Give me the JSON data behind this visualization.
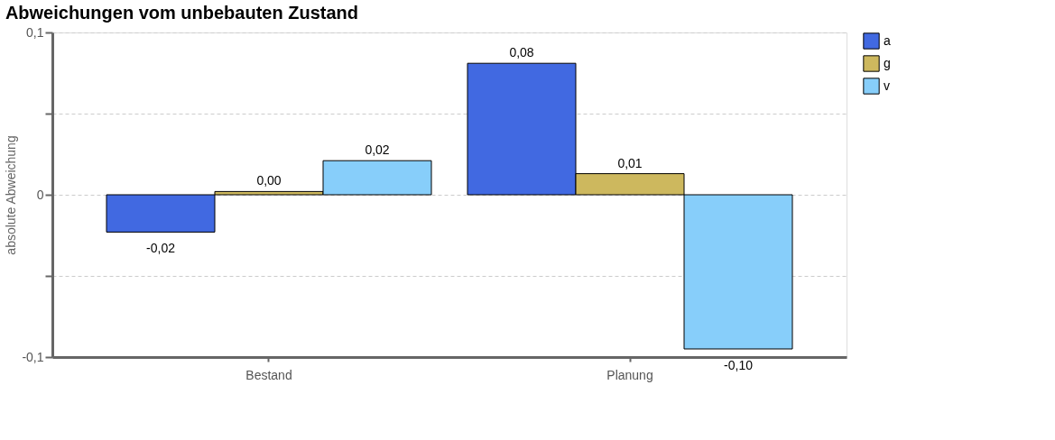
{
  "chart_data": {
    "type": "bar",
    "title": "Abweichungen vom unbebauten Zustand",
    "ylabel": "absolute Abweichung",
    "categories": [
      "Bestand",
      "Planung"
    ],
    "series": [
      {
        "name": "a",
        "color": "#4169e1",
        "values": [
          -0.023,
          0.081
        ],
        "value_labels": [
          "-0,02",
          "0,08"
        ]
      },
      {
        "name": "g",
        "color": "#cdb85e",
        "values": [
          0.002,
          0.013
        ],
        "value_labels": [
          "0,00",
          "0,01"
        ]
      },
      {
        "name": "v",
        "color": "#87cefa",
        "values": [
          0.021,
          -0.095
        ],
        "value_labels": [
          "0,02",
          "-0,10"
        ]
      }
    ],
    "ylim": [
      -0.1,
      0.1
    ],
    "yticks": [
      {
        "value": -0.1,
        "label": "-0,1"
      },
      {
        "value": -0.05,
        "label": null
      },
      0,
      {
        "value": 0.05,
        "label": null
      },
      {
        "value": 0.1,
        "label": "0,1"
      }
    ],
    "grid": "y",
    "legend": "right"
  }
}
